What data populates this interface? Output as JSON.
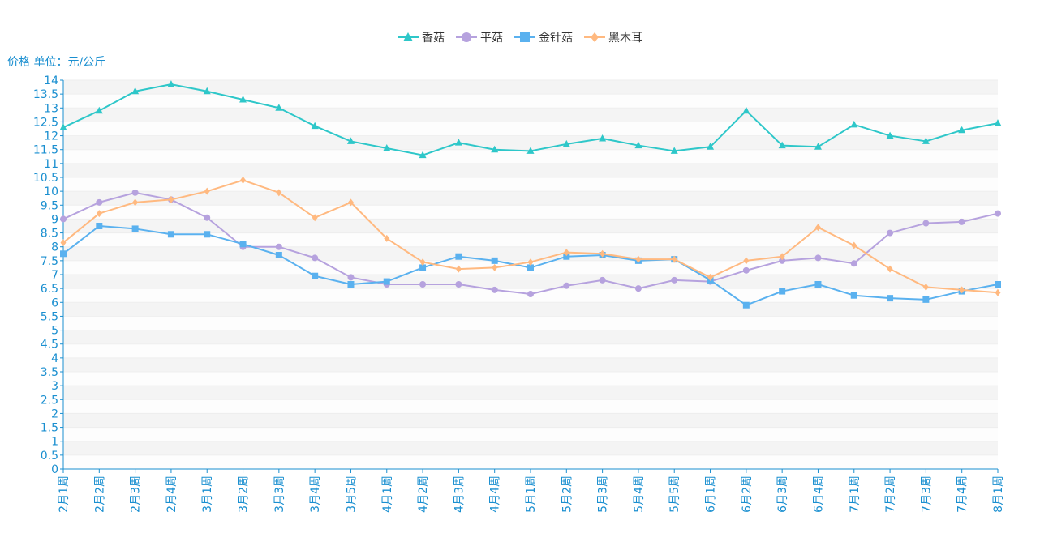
{
  "chart_data": {
    "type": "line",
    "ylabel": "价格 单位：元/公斤",
    "xlabel": "",
    "ylim": [
      0,
      14
    ],
    "ystep": 0.5,
    "grid": true,
    "legend_position": "top-center",
    "categories": [
      "2月1周",
      "2月2周",
      "2月3周",
      "2月4周",
      "3月1周",
      "3月2周",
      "3月3周",
      "3月4周",
      "3月5周",
      "4月1周",
      "4月2周",
      "4月3周",
      "4月4周",
      "5月1周",
      "5月2周",
      "5月3周",
      "5月4周",
      "5月5周",
      "6月1周",
      "6月2周",
      "6月3周",
      "6月4周",
      "7月1周",
      "7月2周",
      "7月3周",
      "7月4周",
      "8月1周"
    ],
    "series": [
      {
        "name": "香菇",
        "color": "#2ec7c9",
        "marker": "triangle",
        "values": [
          12.3,
          12.9,
          13.6,
          13.85,
          13.6,
          13.3,
          13.0,
          12.35,
          11.8,
          11.55,
          11.3,
          11.75,
          11.5,
          11.45,
          11.7,
          11.9,
          11.65,
          11.45,
          11.6,
          12.9,
          11.65,
          11.6,
          12.4,
          12.0,
          11.8,
          12.2,
          12.45
        ]
      },
      {
        "name": "平菇",
        "color": "#b6a2de",
        "marker": "circle",
        "values": [
          9.0,
          9.6,
          9.95,
          9.7,
          9.05,
          8.0,
          8.0,
          7.6,
          6.9,
          6.65,
          6.65,
          6.65,
          6.45,
          6.3,
          6.6,
          6.8,
          6.5,
          6.8,
          6.75,
          7.15,
          7.5,
          7.6,
          7.4,
          8.5,
          8.85,
          8.9,
          9.2
        ]
      },
      {
        "name": "金针菇",
        "color": "#5ab1ef",
        "marker": "square",
        "values": [
          7.75,
          8.75,
          8.65,
          8.45,
          8.45,
          8.1,
          7.7,
          6.95,
          6.65,
          6.75,
          7.25,
          7.65,
          7.5,
          7.25,
          7.65,
          7.7,
          7.5,
          7.55,
          6.8,
          5.9,
          6.4,
          6.65,
          6.25,
          6.15,
          6.1,
          6.4,
          6.65
        ]
      },
      {
        "name": "黑木耳",
        "color": "#ffb980",
        "marker": "diamond",
        "values": [
          8.15,
          9.2,
          9.6,
          9.7,
          10.0,
          10.4,
          9.95,
          9.05,
          9.6,
          8.3,
          7.45,
          7.2,
          7.25,
          7.45,
          7.8,
          7.75,
          7.55,
          7.55,
          6.9,
          7.5,
          7.65,
          8.7,
          8.05,
          7.2,
          6.55,
          6.45,
          6.35
        ]
      }
    ]
  }
}
